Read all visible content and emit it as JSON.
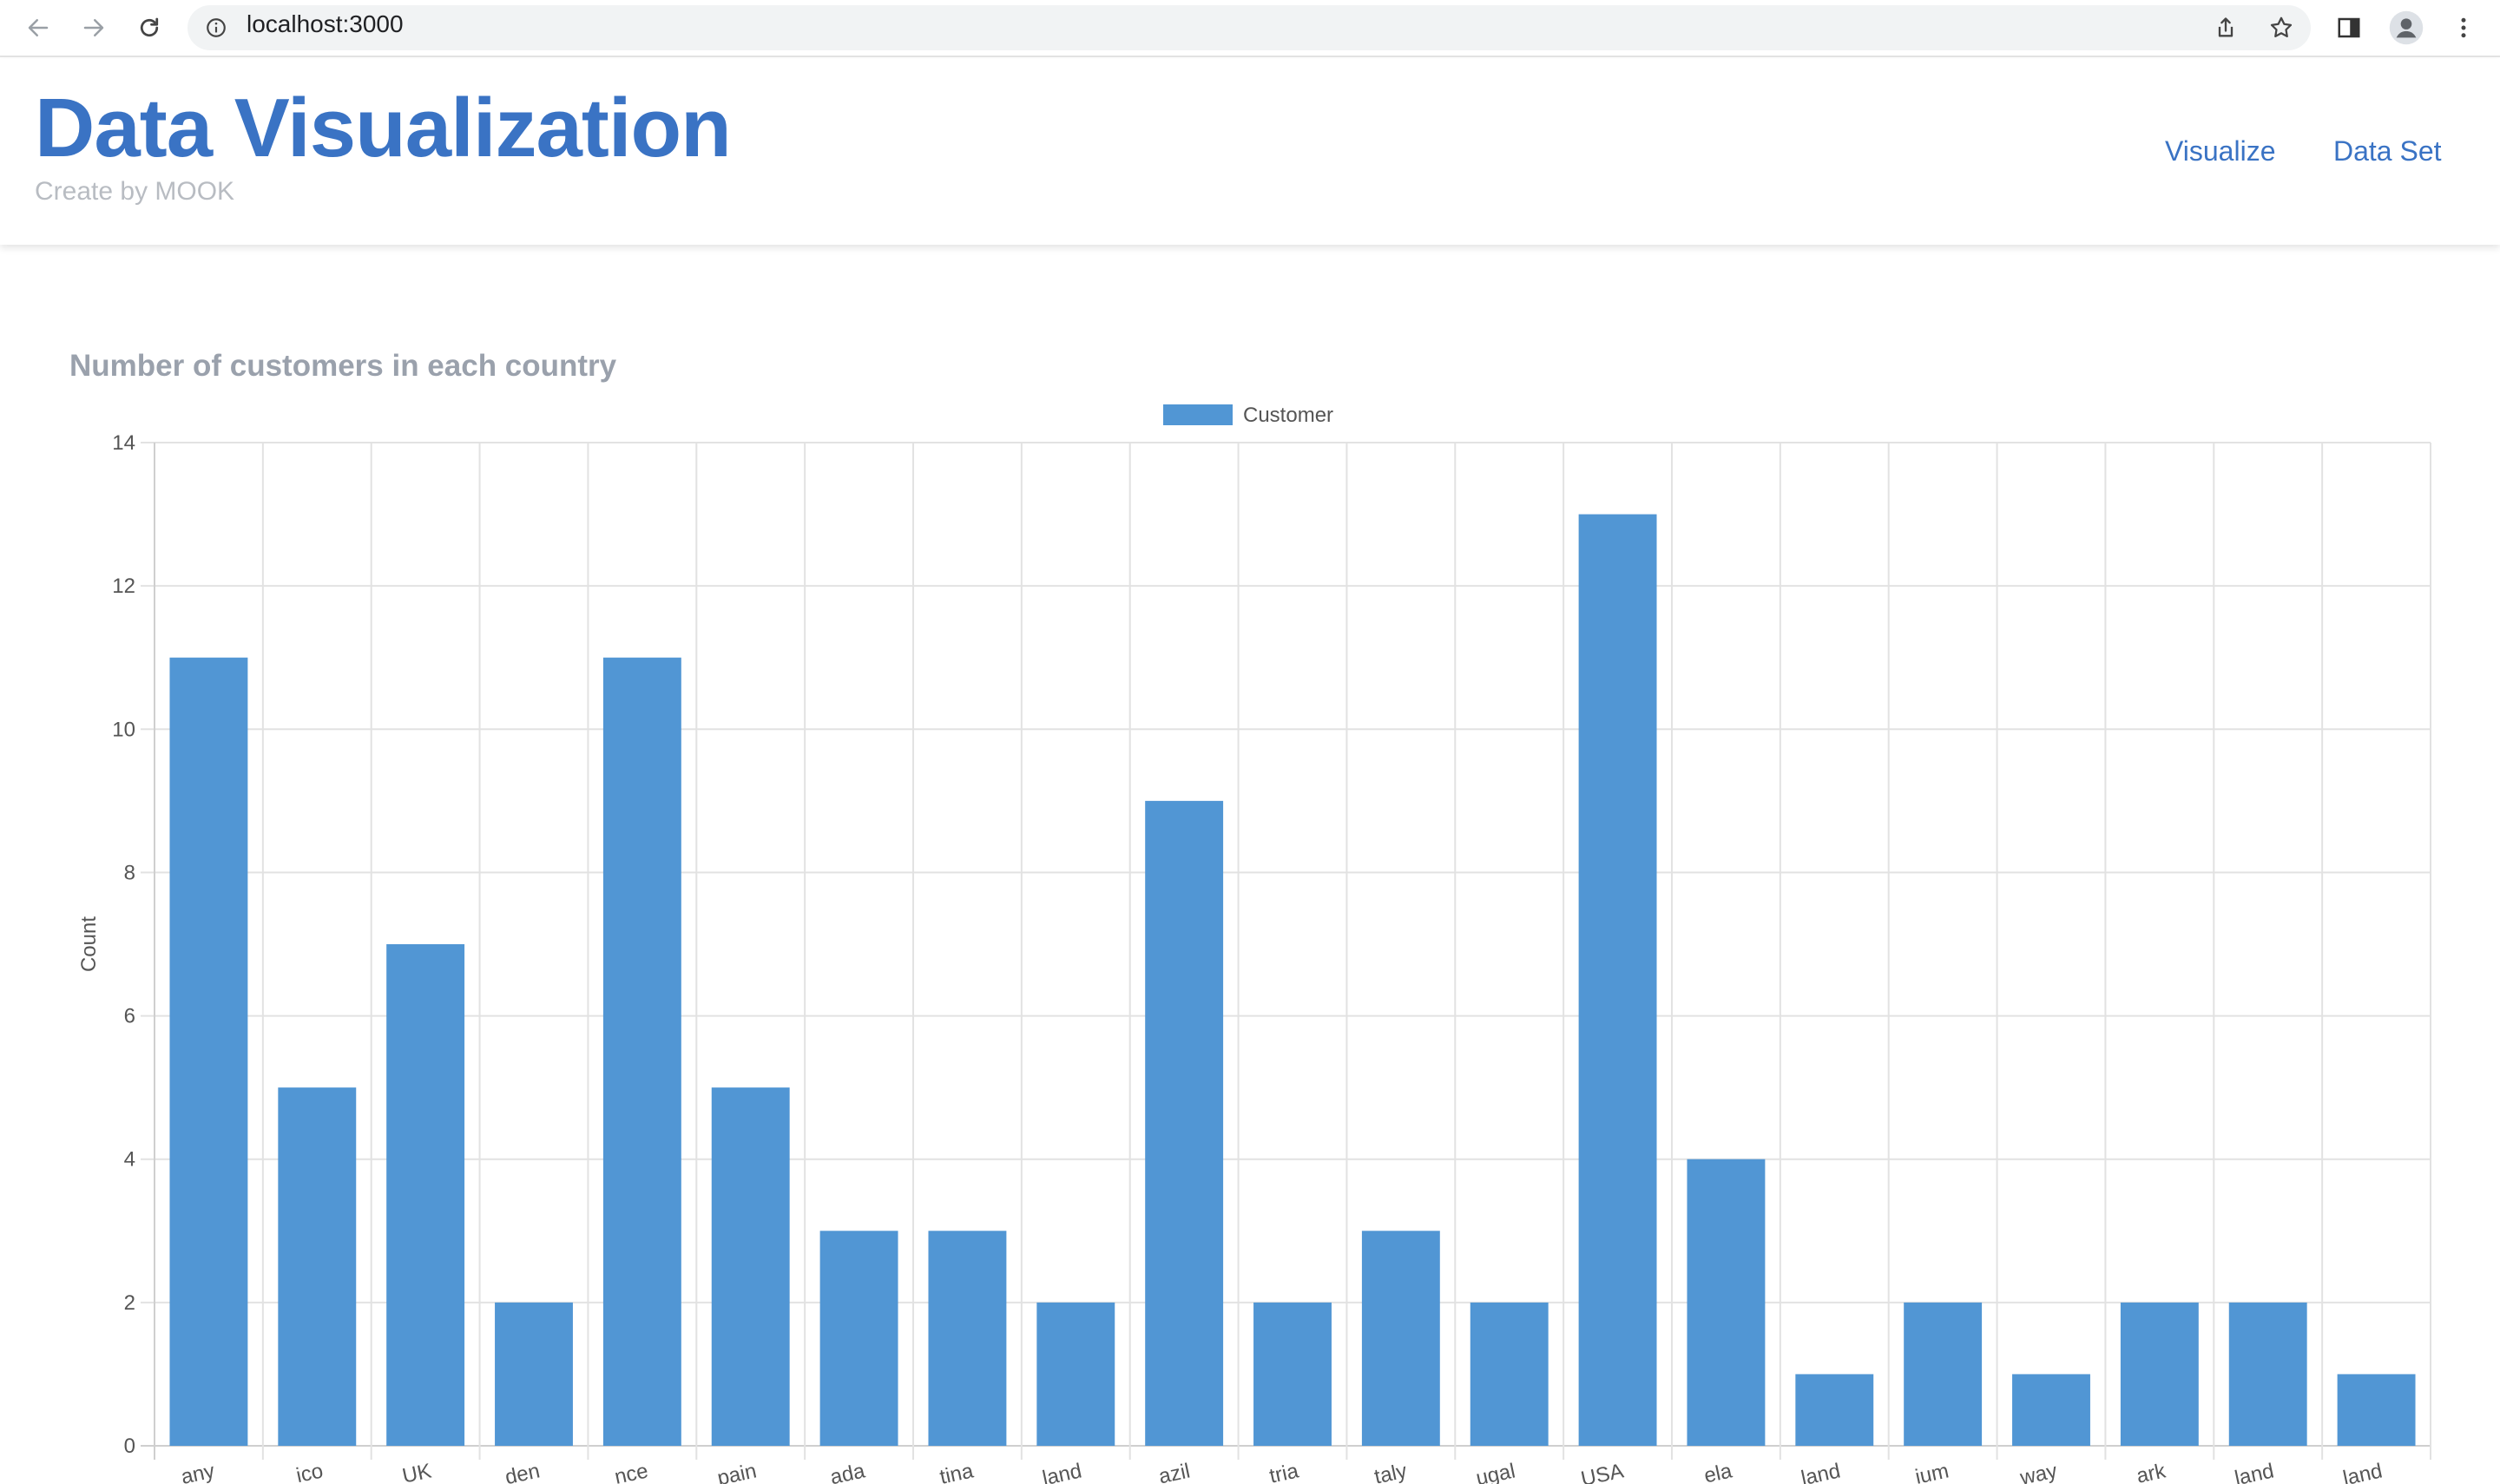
{
  "browser": {
    "url": "localhost:3000"
  },
  "header": {
    "title": "Data Visualization",
    "subtitle": "Create by MOOK",
    "nav": [
      "Visualize",
      "Data Set"
    ]
  },
  "chart": {
    "title": "Number of customers in each country"
  },
  "chart_data": {
    "type": "bar",
    "categories": [
      "any",
      "ico",
      "UK",
      "den",
      "nce",
      "pain",
      "ada",
      "tina",
      "land",
      "azil",
      "tria",
      "taly",
      "ugal",
      "USA",
      "ela",
      "land",
      "ium",
      "way",
      "ark",
      "land",
      "land"
    ],
    "series": [
      {
        "name": "Customer",
        "values": [
          11,
          5,
          7,
          2,
          11,
          5,
          3,
          3,
          2,
          9,
          2,
          3,
          2,
          13,
          4,
          1,
          2,
          1,
          2,
          2,
          1
        ],
        "color": "#5196d4"
      }
    ],
    "ylabel": "Count",
    "ylim": [
      0,
      14
    ],
    "yticks": [
      0,
      2,
      4,
      6,
      8,
      10,
      12,
      14
    ],
    "grid": true,
    "legend": "top-center"
  }
}
